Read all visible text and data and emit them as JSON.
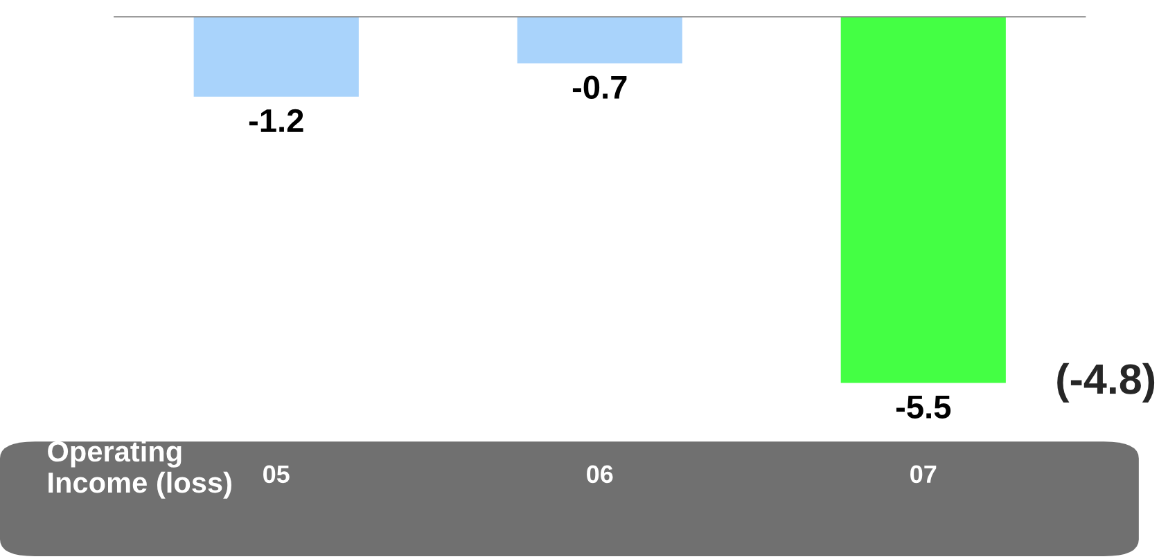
{
  "chart_data": {
    "type": "bar",
    "xlabel": "Operating\nIncome (loss)",
    "categories": [
      "05",
      "06",
      "07"
    ],
    "values": [
      -1.2,
      -0.7,
      -5.5
    ],
    "colors": [
      "#a9d3fb",
      "#a9d3fb",
      "#44ff44"
    ],
    "data_labels": true,
    "grid": false,
    "legend": false,
    "annotations": [
      "(-4.8)"
    ]
  }
}
